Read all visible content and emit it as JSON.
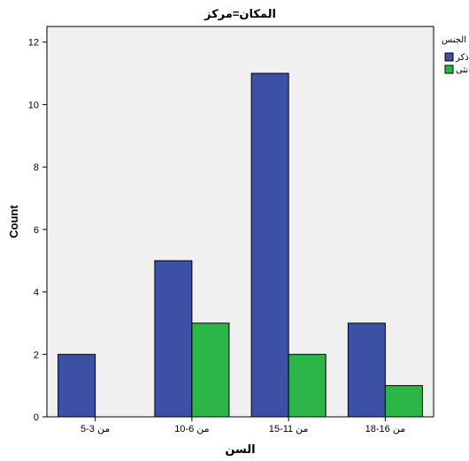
{
  "chart_data": {
    "type": "bar",
    "title": "المكان=مركز",
    "xlabel": "السن",
    "ylabel": "Count",
    "categories": [
      "من 3-5",
      "من 6-10",
      "من 11-15",
      "من 16-18"
    ],
    "series": [
      {
        "name": "ذكر",
        "values": [
          2,
          5,
          11,
          3
        ],
        "color": "#3c51a5"
      },
      {
        "name": "انثى",
        "values": [
          0,
          3,
          2,
          1
        ],
        "color": "#2db648"
      }
    ],
    "ylim": [
      0,
      12.5
    ],
    "yticks": [
      0,
      2,
      4,
      6,
      8,
      10,
      12
    ],
    "legend_title": "الجنس",
    "legend_position": "right",
    "grid": false,
    "plot_background": "#f0f0f0"
  }
}
